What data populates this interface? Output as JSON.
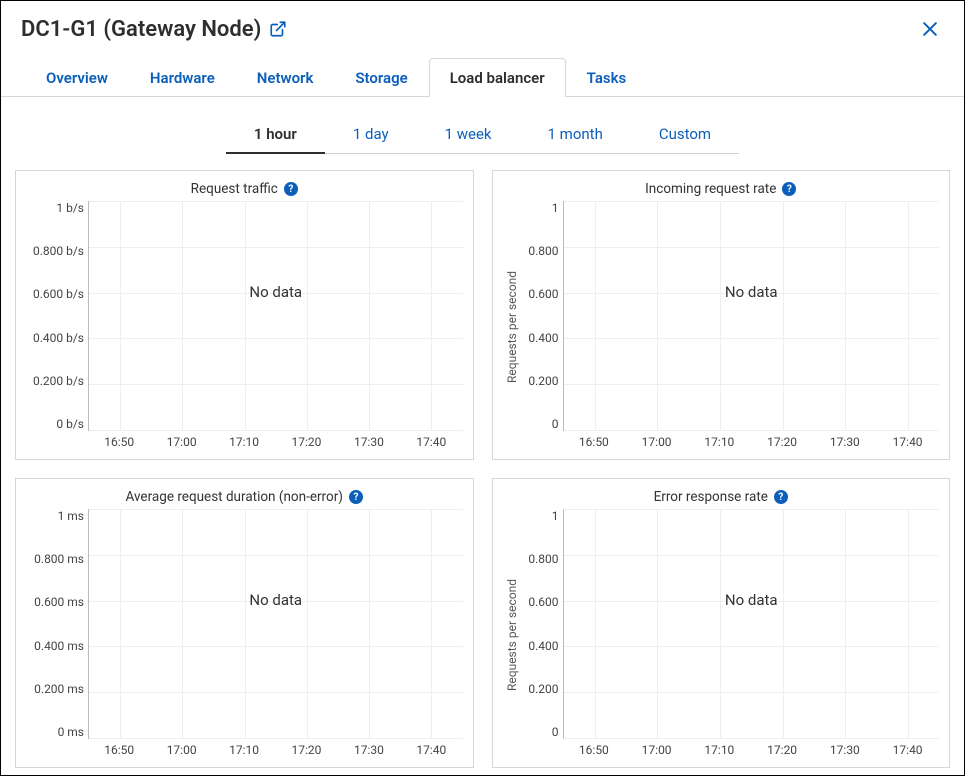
{
  "header": {
    "title": "DC1-G1 (Gateway Node)"
  },
  "tabs": [
    {
      "label": "Overview",
      "active": false
    },
    {
      "label": "Hardware",
      "active": false
    },
    {
      "label": "Network",
      "active": false
    },
    {
      "label": "Storage",
      "active": false
    },
    {
      "label": "Load balancer",
      "active": true
    },
    {
      "label": "Tasks",
      "active": false
    }
  ],
  "time_ranges": [
    {
      "label": "1 hour",
      "active": true
    },
    {
      "label": "1 day",
      "active": false
    },
    {
      "label": "1 week",
      "active": false
    },
    {
      "label": "1 month",
      "active": false
    },
    {
      "label": "Custom",
      "active": false
    }
  ],
  "charts": [
    {
      "title": "Request traffic",
      "type": "line",
      "y_axis_label": null,
      "y_ticks": [
        "1 b/s",
        "0.800 b/s",
        "0.600 b/s",
        "0.400 b/s",
        "0.200 b/s",
        "0 b/s"
      ],
      "x_ticks": [
        "16:50",
        "17:00",
        "17:10",
        "17:20",
        "17:30",
        "17:40"
      ],
      "ylim": [
        0,
        1
      ],
      "ytick_narrow": false,
      "empty_message": "No data",
      "grid_color": "#eeeeee",
      "background_color": "#ffffff"
    },
    {
      "title": "Incoming request rate",
      "type": "line",
      "y_axis_label": "Requests per second",
      "y_ticks": [
        "1",
        "0.800",
        "0.600",
        "0.400",
        "0.200",
        "0"
      ],
      "x_ticks": [
        "16:50",
        "17:00",
        "17:10",
        "17:20",
        "17:30",
        "17:40"
      ],
      "ylim": [
        0,
        1
      ],
      "ytick_narrow": true,
      "empty_message": "No data",
      "grid_color": "#eeeeee",
      "background_color": "#ffffff"
    },
    {
      "title": "Average request duration (non-error)",
      "type": "line",
      "y_axis_label": null,
      "y_ticks": [
        "1 ms",
        "0.800 ms",
        "0.600 ms",
        "0.400 ms",
        "0.200 ms",
        "0 ms"
      ],
      "x_ticks": [
        "16:50",
        "17:00",
        "17:10",
        "17:20",
        "17:30",
        "17:40"
      ],
      "ylim": [
        0,
        1
      ],
      "ytick_narrow": false,
      "empty_message": "No data",
      "grid_color": "#eeeeee",
      "background_color": "#ffffff"
    },
    {
      "title": "Error response rate",
      "type": "line",
      "y_axis_label": "Requests per second",
      "y_ticks": [
        "1",
        "0.800",
        "0.600",
        "0.400",
        "0.200",
        "0"
      ],
      "x_ticks": [
        "16:50",
        "17:00",
        "17:10",
        "17:20",
        "17:30",
        "17:40"
      ],
      "ylim": [
        0,
        1
      ],
      "ytick_narrow": true,
      "empty_message": "No data",
      "grid_color": "#eeeeee",
      "background_color": "#ffffff"
    }
  ],
  "colors": {
    "link": "#0b5fba",
    "text": "#2e2e2e",
    "border": "#d7d7d7",
    "grid": "#eeeeee"
  }
}
